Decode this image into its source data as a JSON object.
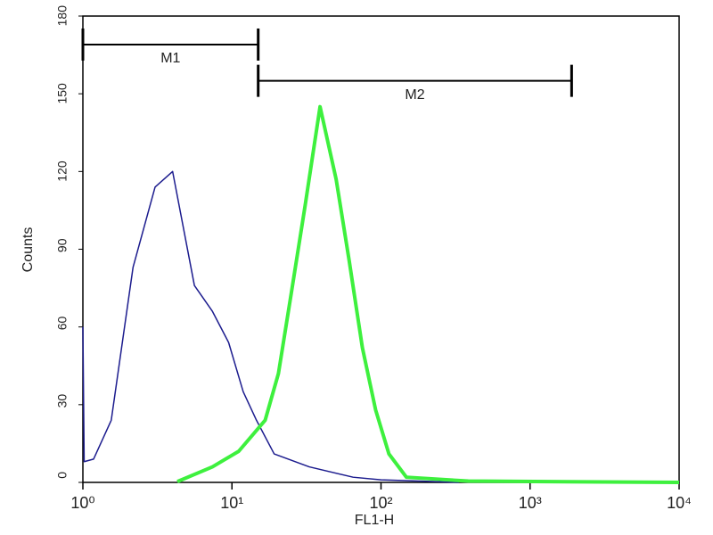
{
  "chart_data": {
    "type": "line",
    "xlabel": "FL1-H",
    "ylabel": "Counts",
    "xscale": "log",
    "xlim": [
      1,
      10000
    ],
    "xticks": [
      {
        "value": 1,
        "label": "10⁰"
      },
      {
        "value": 10,
        "label": "10¹"
      },
      {
        "value": 100,
        "label": "10²"
      },
      {
        "value": 1000,
        "label": "10³"
      },
      {
        "value": 10000,
        "label": "10⁴"
      }
    ],
    "ylim": [
      0,
      180
    ],
    "yticks": [
      0,
      30,
      60,
      90,
      120,
      150,
      180
    ],
    "grid": false,
    "series": [
      {
        "color": "#1c1c8e",
        "width": 1.5,
        "x": [
          1,
          1.02,
          1.18,
          1.55,
          2.17,
          3.05,
          4,
          5.6,
          7.4,
          9.5,
          11.9,
          14.6,
          19.2,
          33,
          65,
          100,
          333
        ],
        "values": [
          60,
          8,
          9,
          24,
          83,
          114,
          120,
          76,
          66,
          54,
          35,
          24,
          11,
          6,
          2,
          1,
          0
        ]
      },
      {
        "color": "#3ef03e",
        "width": 4,
        "x": [
          4.3,
          7.4,
          11.1,
          16.7,
          20.5,
          25,
          31,
          39,
          50,
          61,
          75,
          92,
          113,
          148,
          385,
          10000
        ],
        "values": [
          0.3,
          6,
          12,
          24,
          42,
          73,
          107,
          145,
          117,
          86,
          52,
          28,
          11,
          2,
          0.5,
          0
        ]
      }
    ],
    "markers": [
      {
        "label": "M1",
        "range": [
          1,
          15
        ],
        "y": 169
      },
      {
        "label": "M2",
        "range": [
          15,
          1900
        ],
        "y": 155
      }
    ]
  }
}
